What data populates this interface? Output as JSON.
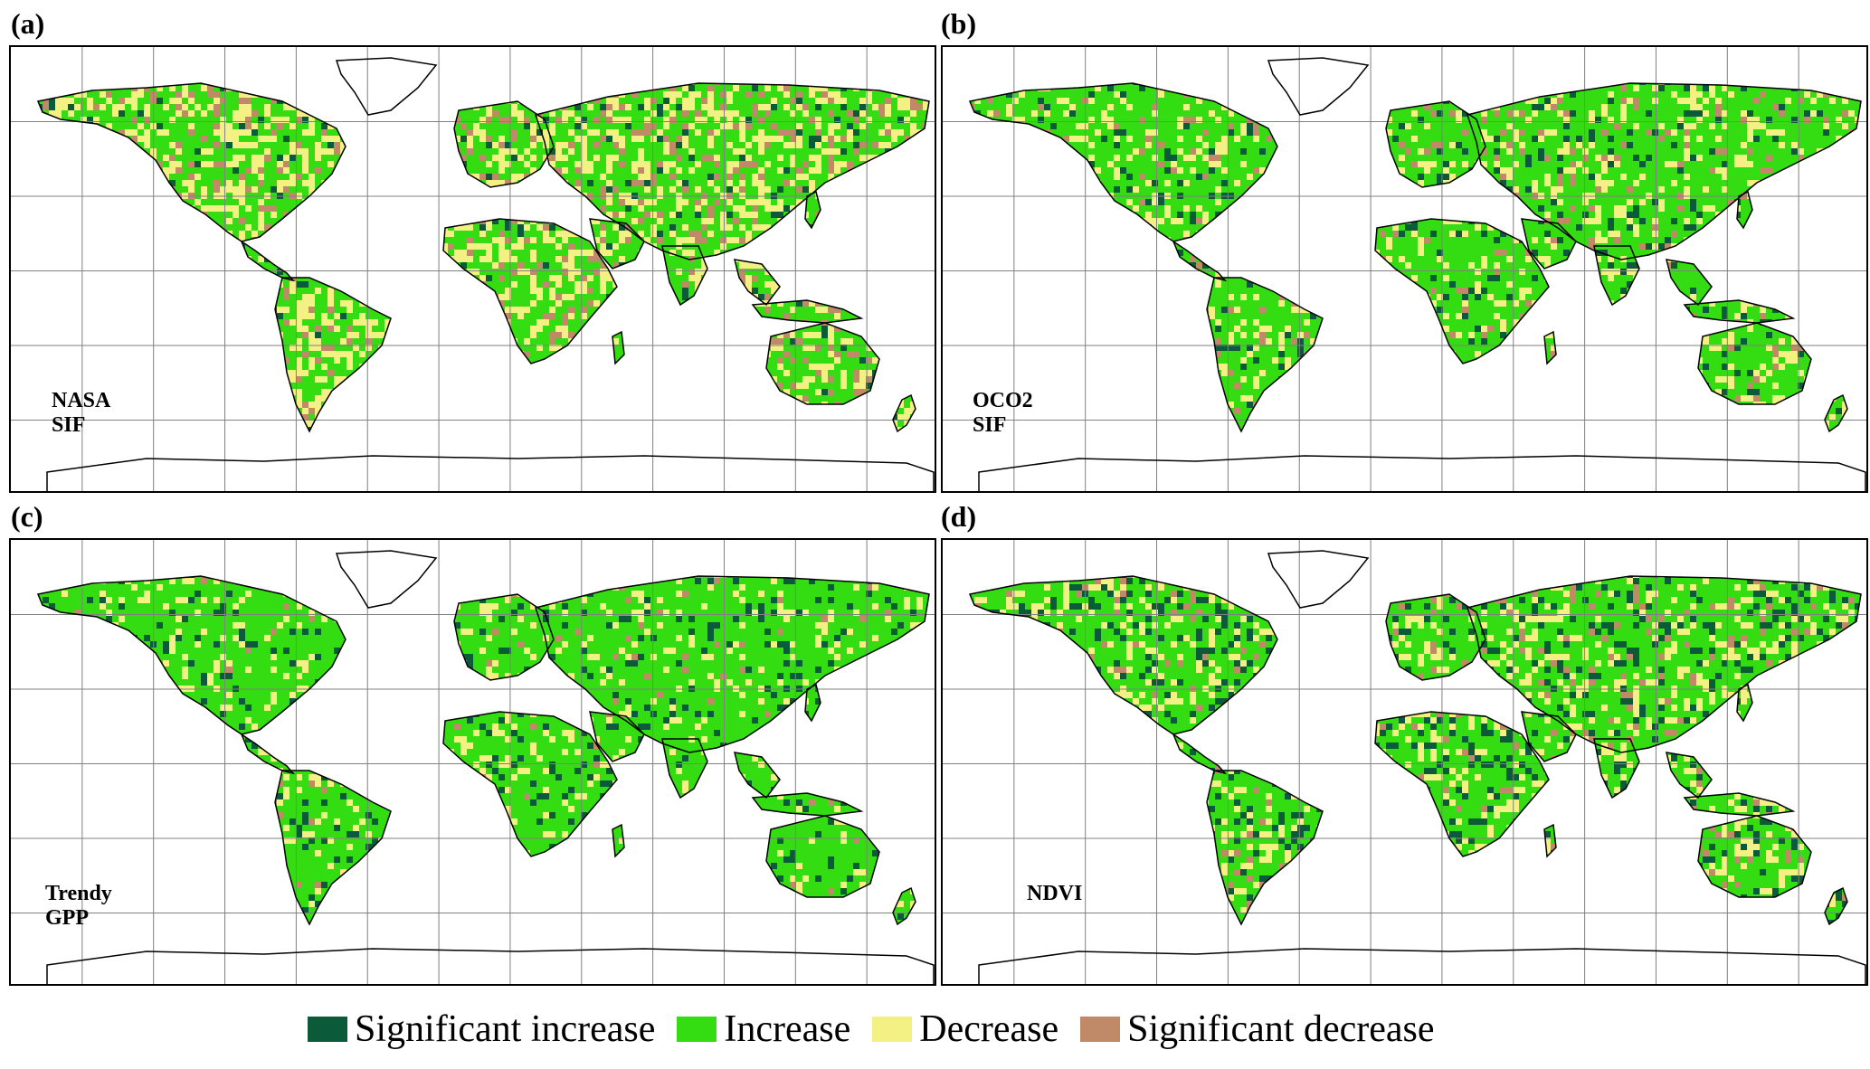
{
  "panels": [
    {
      "label": "(a)",
      "dataset": "NASA SIF"
    },
    {
      "label": "(b)",
      "dataset": "OCO2 SIF"
    },
    {
      "label": "(c)",
      "dataset": "Trendy GPP"
    },
    {
      "label": "(d)",
      "dataset": "NDVI"
    }
  ],
  "legend": [
    {
      "label": "Significant increase",
      "color": "#0b5a3a"
    },
    {
      "label": "Increase",
      "color": "#33dd11"
    },
    {
      "label": "Decrease",
      "color": "#f4f184"
    },
    {
      "label": "Significant decrease",
      "color": "#c08a68"
    }
  ],
  "colors": {
    "land_outline": "#000000",
    "grid": "#808080"
  }
}
